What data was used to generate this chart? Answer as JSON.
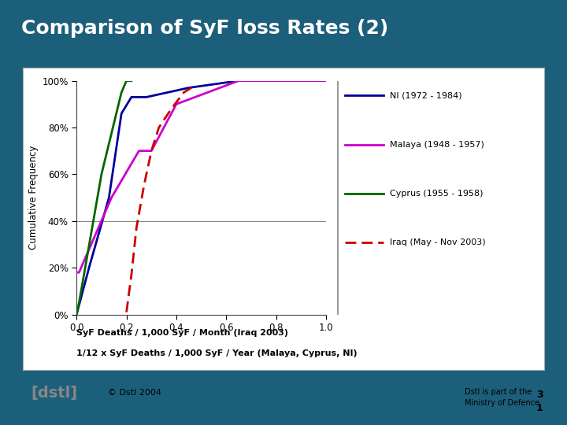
{
  "title": "Comparison of SyF loss Rates (2)",
  "title_color": "#FFFFFF",
  "bg_color": "#1C5F7B",
  "xlabel1": "SyF Deaths / 1,000 SyF / Month (Iraq 2003)",
  "xlabel2": "1/12 x SyF Deaths / 1,000 SyF / Year (Malaya, Cyprus, NI)",
  "ylabel": "Cumulative Frequency",
  "xlim": [
    0.0,
    1.0
  ],
  "ylim": [
    0.0,
    1.0
  ],
  "xticks": [
    0.0,
    0.2,
    0.4,
    0.6,
    0.8,
    1.0
  ],
  "ytick_vals": [
    0.0,
    0.2,
    0.4,
    0.6,
    0.8,
    1.0
  ],
  "ytick_labels": [
    "0%",
    "20%",
    "40%",
    "60%",
    "80%",
    "100%"
  ],
  "copyright": "© Dstl 2004",
  "ni_x": [
    0.0,
    0.05,
    0.13,
    0.18,
    0.22,
    0.28,
    0.45,
    0.65,
    1.0
  ],
  "ni_y": [
    0.0,
    0.2,
    0.5,
    0.86,
    0.93,
    0.93,
    0.97,
    1.0,
    1.0
  ],
  "ni_color": "#000099",
  "ni_label": "NI (1972 - 1984)",
  "malaya_x": [
    0.0,
    0.01,
    0.14,
    0.25,
    0.3,
    0.4,
    0.65,
    1.0
  ],
  "malaya_y": [
    0.18,
    0.18,
    0.5,
    0.7,
    0.7,
    0.9,
    1.0,
    1.0
  ],
  "malaya_color": "#CC00CC",
  "malaya_label": "Malaya (1948 - 1957)",
  "cyprus_x": [
    0.0,
    0.01,
    0.1,
    0.18,
    0.2,
    0.22
  ],
  "cyprus_y": [
    0.0,
    0.05,
    0.6,
    0.95,
    1.0,
    1.0
  ],
  "cyprus_color": "#006600",
  "cyprus_label": "Cyprus (1955 - 1958)",
  "iraq_x": [
    0.2,
    0.22,
    0.24,
    0.27,
    0.3,
    0.33,
    0.38,
    0.43,
    0.46
  ],
  "iraq_y": [
    0.01,
    0.17,
    0.37,
    0.55,
    0.7,
    0.8,
    0.88,
    0.95,
    0.97
  ],
  "iraq_color": "#CC0000",
  "iraq_label": "Iraq (May - Nov 2003)",
  "dstl_label": "[dstl]",
  "dstl_text": "Dstl is part of the\nMinistry of Defence",
  "page": "3\n1"
}
